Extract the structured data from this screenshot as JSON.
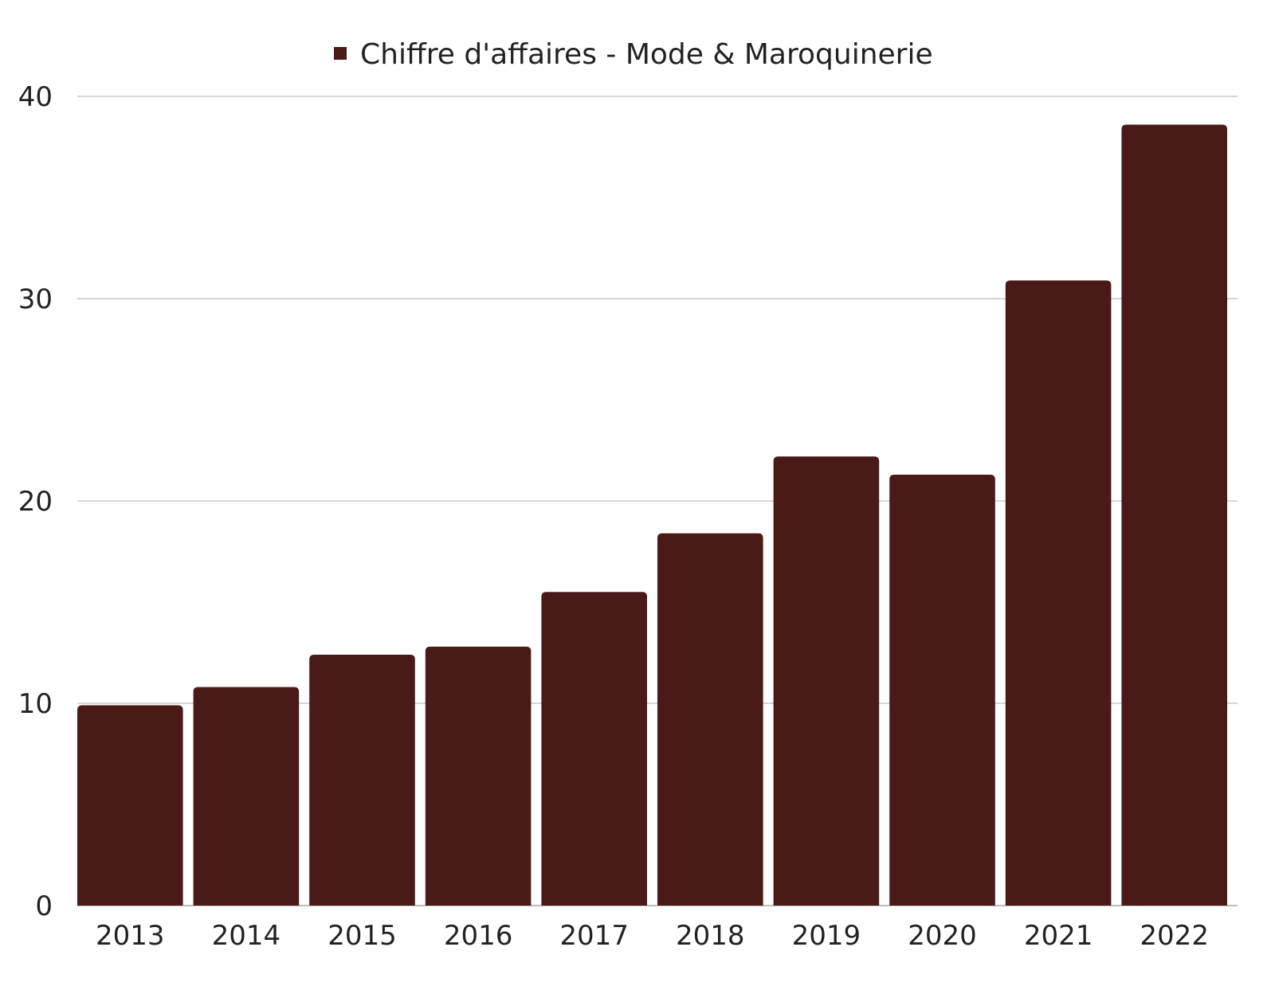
{
  "chart_data": {
    "type": "bar",
    "title": "",
    "xlabel": "",
    "ylabel": "",
    "categories": [
      "2013",
      "2014",
      "2015",
      "2016",
      "2017",
      "2018",
      "2019",
      "2020",
      "2021",
      "2022"
    ],
    "series": [
      {
        "name": "Chiffre d'affaires - Mode & Maroquinerie",
        "values": [
          9.9,
          10.8,
          12.4,
          12.8,
          15.5,
          18.4,
          22.2,
          21.3,
          30.9,
          38.6
        ],
        "color": "#4a1a18"
      }
    ],
    "ylim": [
      0,
      40
    ],
    "yticks": [
      "0",
      "10",
      "20",
      "30",
      "40"
    ],
    "grid": true,
    "legend_position": "top-center"
  },
  "colors": {
    "bar": "#4a1a18",
    "grid": "#d6d6d6",
    "text": "#222222"
  }
}
